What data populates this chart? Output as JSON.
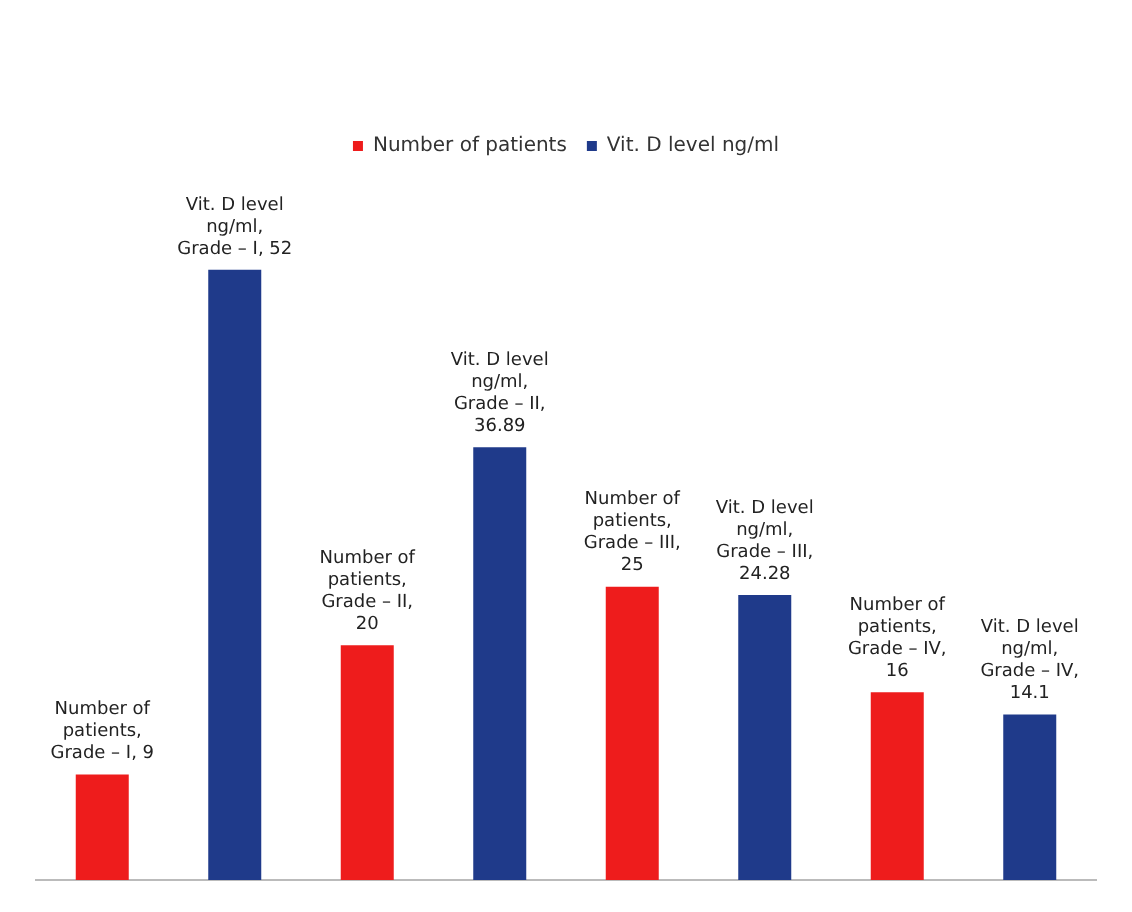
{
  "chart_data": {
    "type": "bar",
    "categories": [
      null,
      null,
      null,
      null
    ],
    "series": [
      {
        "name": "Number of patients",
        "color": "#ee1c1c",
        "values": [
          9,
          20,
          25,
          16
        ],
        "value_labels": [
          "Number of patients, Grade – I, 9",
          "Number of patients, Grade – II, 20",
          "Number of patients, Grade – III, 25",
          "Number of patients, Grade – IV, 16"
        ]
      },
      {
        "name": "Vit. D level ng/ml",
        "color": "#1f3a8a",
        "values": [
          52,
          36.89,
          24.28,
          14.1
        ],
        "value_labels": [
          "Vit. D level ng/ml, Grade – I, 52",
          "Vit. D level ng/ml, Grade – II, 36.89",
          "Vit. D level ng/ml, Grade – III, 24.28",
          "Vit. D level ng/ml, Grade – IV, 14.1"
        ]
      }
    ],
    "legend": "top",
    "grid": false,
    "tick_labels": false
  }
}
